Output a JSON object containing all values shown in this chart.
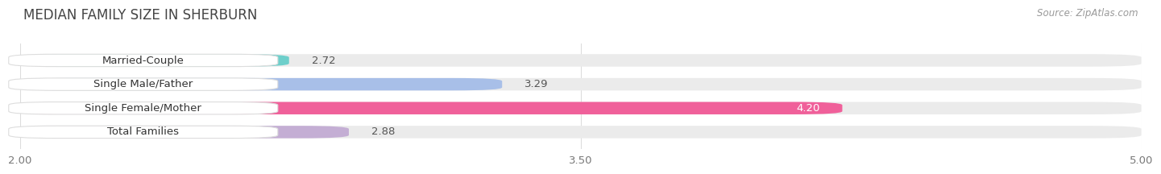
{
  "title": "MEDIAN FAMILY SIZE IN SHERBURN",
  "source": "Source: ZipAtlas.com",
  "categories": [
    "Married-Couple",
    "Single Male/Father",
    "Single Female/Mother",
    "Total Families"
  ],
  "values": [
    2.72,
    3.29,
    4.2,
    2.88
  ],
  "bar_colors": [
    "#6ecfcb",
    "#a8bfe8",
    "#f0609a",
    "#c4aed4"
  ],
  "xlim": [
    2.0,
    5.0
  ],
  "xstart": 2.0,
  "xticks": [
    2.0,
    3.5,
    5.0
  ],
  "xtick_labels": [
    "2.00",
    "3.50",
    "5.00"
  ],
  "bar_height": 0.52,
  "bg_color": "#ffffff",
  "bar_bg_color": "#ebebeb",
  "label_fontsize": 9.5,
  "title_fontsize": 12,
  "value_label_color_default": "#555555",
  "value_label_color_inside": "#ffffff",
  "grid_color": "#dddddd",
  "title_color": "#444444",
  "source_color": "#999999"
}
